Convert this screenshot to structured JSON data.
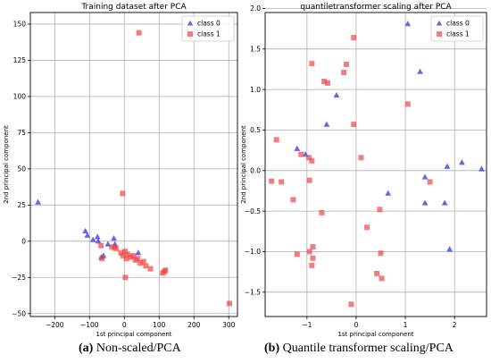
{
  "captions": [
    {
      "tag": "(a)",
      "text": "Non-scaled/PCA"
    },
    {
      "tag": "(b)",
      "text": "Quantile transformer scaling/PCA"
    }
  ],
  "colors": {
    "class0": "#3333dd",
    "class1": "#ee4444"
  },
  "chart_data": [
    {
      "type": "scatter",
      "title": "Training dataset after PCA",
      "xlabel": "1st principal component",
      "ylabel": "2nd principal component",
      "xlim": [
        -270,
        325
      ],
      "ylim": [
        -52,
        158
      ],
      "xticks": [
        -200,
        -100,
        0,
        100,
        200,
        300
      ],
      "yticks": [
        -50,
        -25,
        0,
        25,
        50,
        75,
        100,
        125,
        150
      ],
      "grid": true,
      "legend": "top-right",
      "series": [
        {
          "name": "class 0",
          "marker": "triangle",
          "points": [
            [
              -248,
              27
            ],
            [
              -112,
              7
            ],
            [
              -106,
              4
            ],
            [
              -90,
              1
            ],
            [
              -77,
              3
            ],
            [
              -75,
              0
            ],
            [
              -66,
              -11
            ],
            [
              -60,
              -10
            ],
            [
              -47,
              -2
            ],
            [
              -30,
              2
            ],
            [
              -27,
              -2
            ],
            [
              40,
              -8
            ]
          ]
        },
        {
          "name": "class 1",
          "marker": "square",
          "points": [
            [
              42,
              144
            ],
            [
              -5,
              33
            ],
            [
              3,
              -25
            ],
            [
              -67,
              -3
            ],
            [
              -64,
              -12
            ],
            [
              -36,
              -4
            ],
            [
              -28,
              -4
            ],
            [
              -24,
              -5
            ],
            [
              -10,
              -8
            ],
            [
              -4,
              -10
            ],
            [
              2,
              -7
            ],
            [
              6,
              -12
            ],
            [
              10,
              -9
            ],
            [
              18,
              -11
            ],
            [
              26,
              -10
            ],
            [
              32,
              -13
            ],
            [
              38,
              -12
            ],
            [
              46,
              -15
            ],
            [
              55,
              -14
            ],
            [
              62,
              -17
            ],
            [
              75,
              -19
            ],
            [
              110,
              -22
            ],
            [
              115,
              -21
            ],
            [
              118,
              -20
            ],
            [
              302,
              -43
            ]
          ]
        }
      ]
    },
    {
      "type": "scatter",
      "title": "quantiletransformer scaling after PCA",
      "xlabel": "1st principal component",
      "ylabel": "2nd principal component",
      "xlim": [
        -1.85,
        2.65
      ],
      "ylim": [
        -1.8,
        1.95
      ],
      "xticks": [
        -1,
        0,
        1,
        2
      ],
      "yticks": [
        -1.5,
        -1.0,
        -0.5,
        0.0,
        0.5,
        1.0,
        1.5,
        2.0
      ],
      "grid": true,
      "legend": "top-right",
      "series": [
        {
          "name": "class 0",
          "marker": "triangle",
          "points": [
            [
              1.05,
              1.81
            ],
            [
              1.3,
              1.22
            ],
            [
              -0.4,
              0.93
            ],
            [
              -0.6,
              0.57
            ],
            [
              -1.2,
              0.27
            ],
            [
              -1.03,
              0.2
            ],
            [
              0.65,
              -0.28
            ],
            [
              1.4,
              -0.08
            ],
            [
              1.4,
              -0.4
            ],
            [
              1.8,
              -0.4
            ],
            [
              1.85,
              0.05
            ],
            [
              2.15,
              0.1
            ],
            [
              2.55,
              0.02
            ],
            [
              1.9,
              -0.97
            ]
          ]
        },
        {
          "name": "class 1",
          "marker": "square",
          "points": [
            [
              -0.05,
              1.64
            ],
            [
              -0.9,
              1.32
            ],
            [
              -0.2,
              1.31
            ],
            [
              -0.25,
              1.21
            ],
            [
              -0.65,
              1.1
            ],
            [
              -0.58,
              1.08
            ],
            [
              1.05,
              0.82
            ],
            [
              -0.05,
              0.57
            ],
            [
              -1.62,
              0.38
            ],
            [
              -1.12,
              0.2
            ],
            [
              -0.96,
              0.16
            ],
            [
              -0.9,
              0.12
            ],
            [
              0.1,
              0.16
            ],
            [
              -1.72,
              -0.13
            ],
            [
              -1.52,
              -0.14
            ],
            [
              -0.95,
              -0.12
            ],
            [
              -1.28,
              -0.36
            ],
            [
              -0.7,
              -0.52
            ],
            [
              1.5,
              -0.14
            ],
            [
              0.48,
              -0.48
            ],
            [
              0.22,
              -0.7
            ],
            [
              -1.2,
              -1.03
            ],
            [
              -0.95,
              -1.0
            ],
            [
              -0.88,
              -0.94
            ],
            [
              -0.88,
              -1.08
            ],
            [
              -0.9,
              -1.17
            ],
            [
              0.5,
              -1.02
            ],
            [
              0.42,
              -1.27
            ],
            [
              0.52,
              -1.33
            ],
            [
              -0.1,
              -1.65
            ]
          ]
        }
      ]
    }
  ]
}
